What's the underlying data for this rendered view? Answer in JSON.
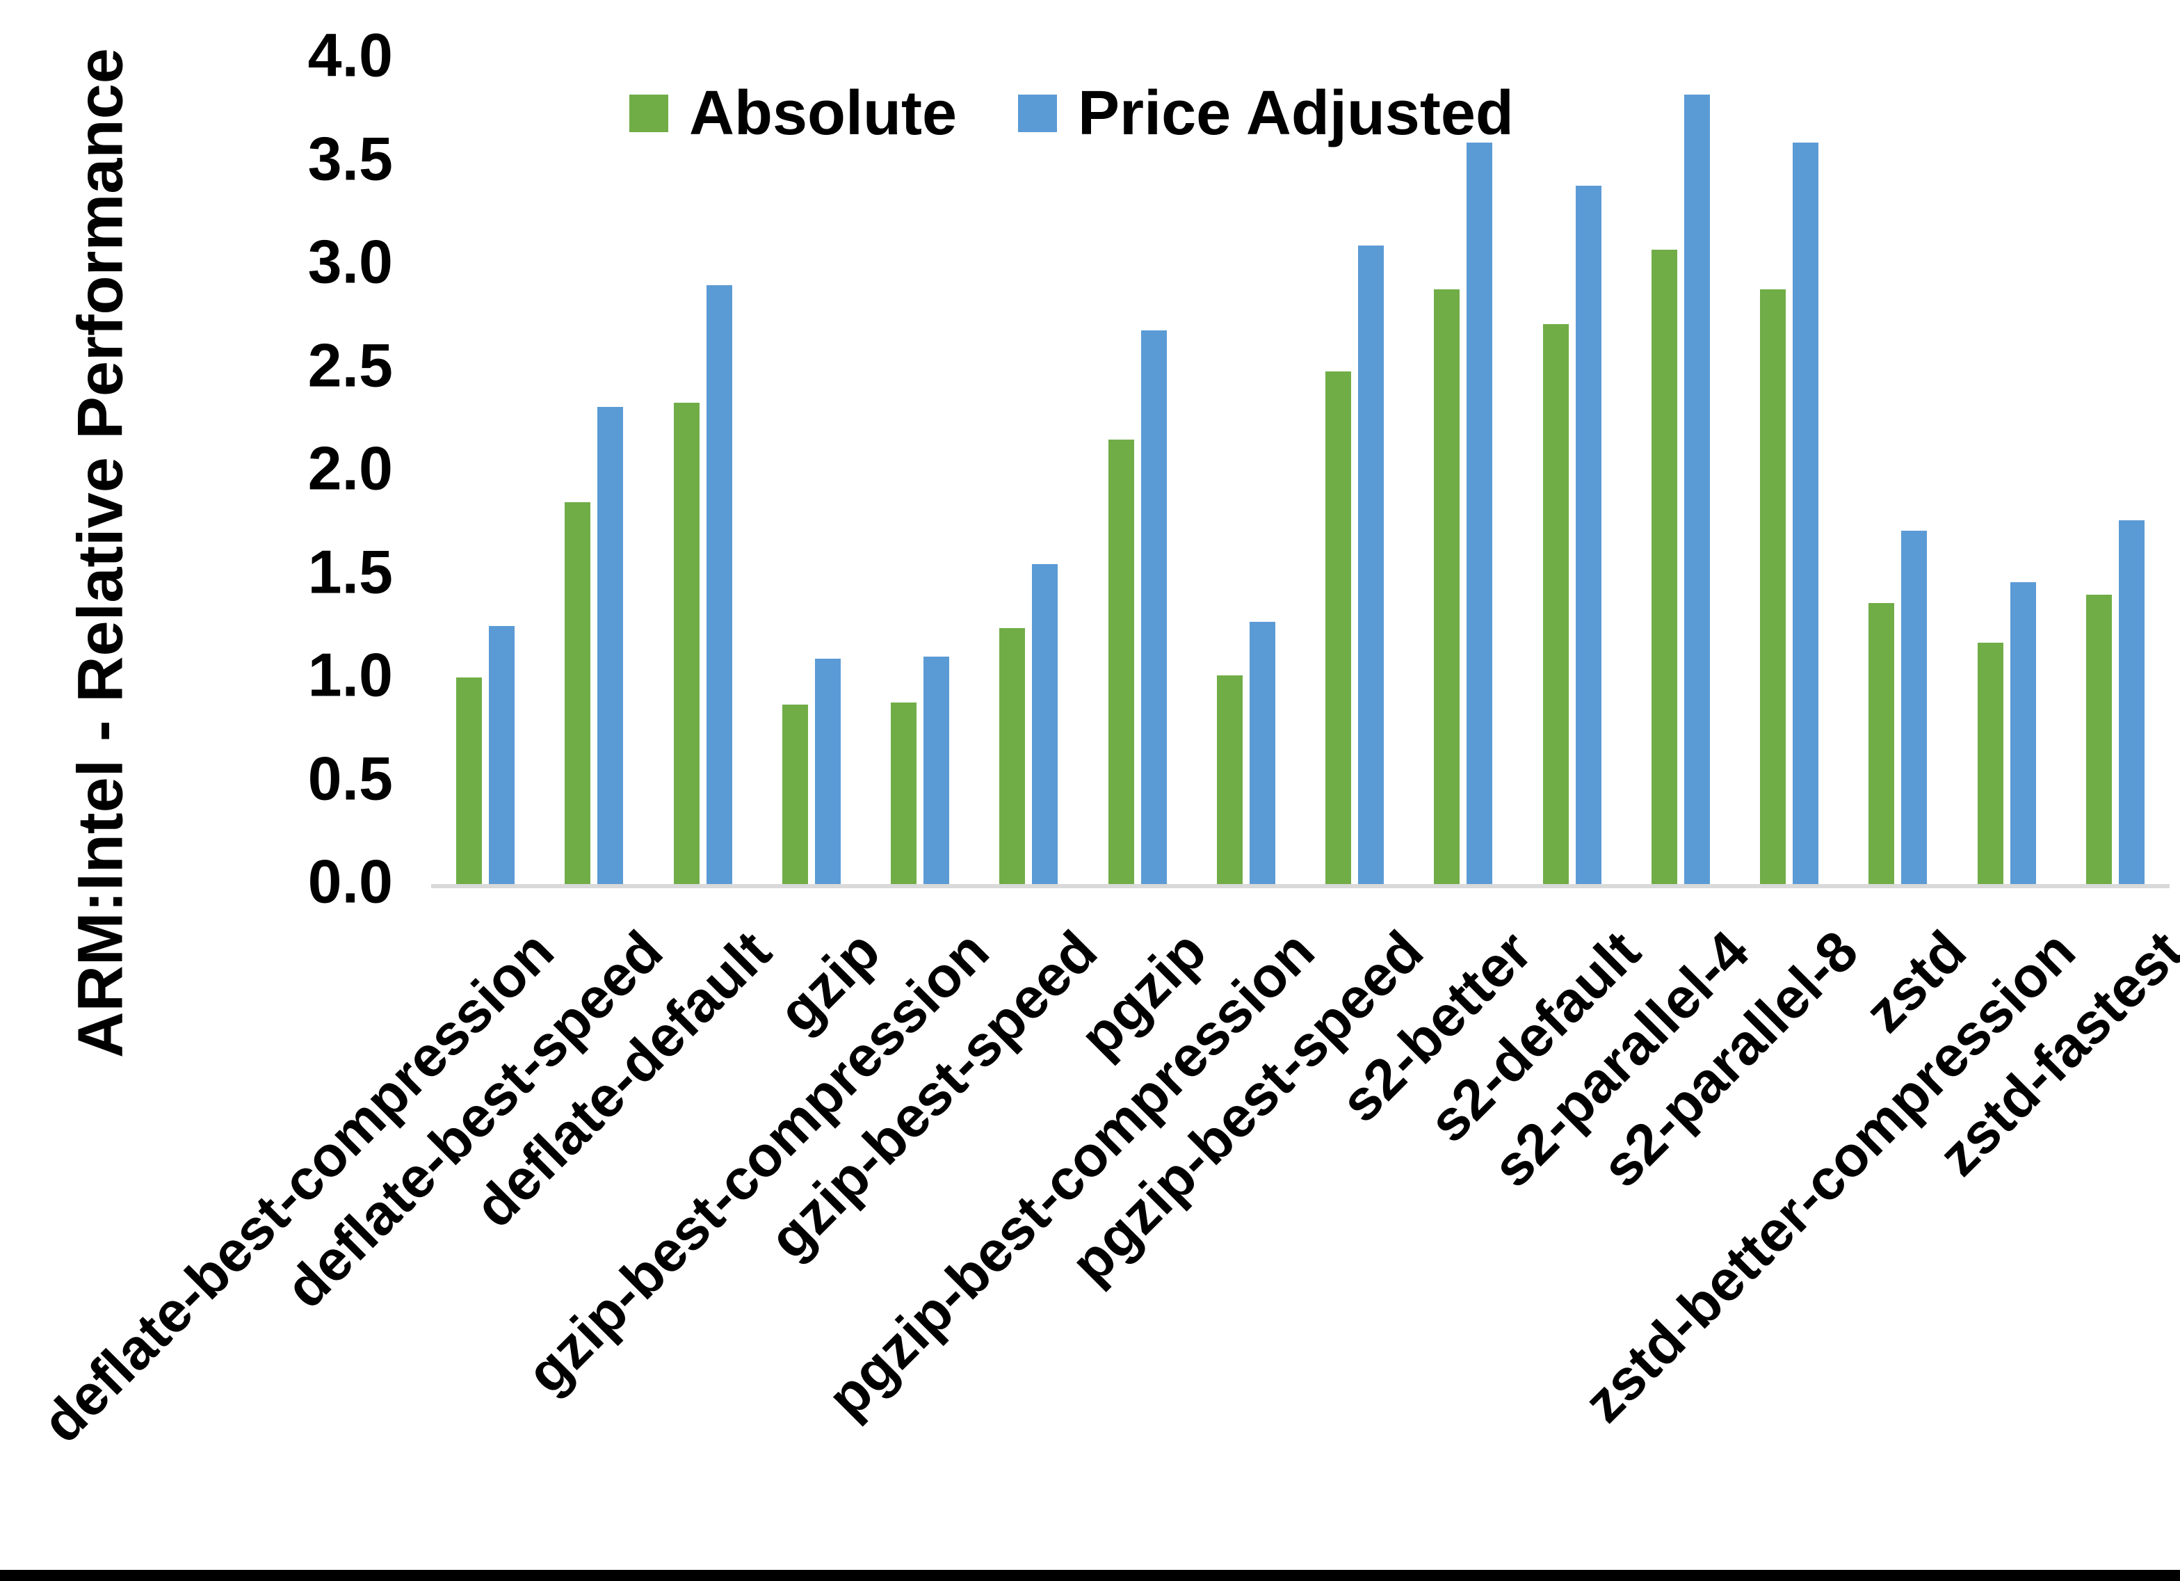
{
  "chart_data": {
    "type": "bar",
    "title": "",
    "xlabel": "",
    "ylabel": "ARM:Intel - Relative Performance",
    "ylim": [
      0.0,
      4.0
    ],
    "ytick_step": 0.5,
    "ytick_labels": [
      "4.0",
      "3.5",
      "3.0",
      "2.5",
      "2.0",
      "1.5",
      "1.0",
      "0.5",
      "0.0"
    ],
    "grid": false,
    "legend_position": "top-center",
    "categories": [
      "deflate-best-compression",
      "deflate-best-speed",
      "deflate-default",
      "gzip",
      "gzip-best-compression",
      "gzip-best-speed",
      "pgzip",
      "pgzip-best-compression",
      "pgzip-best-speed",
      "s2-better",
      "s2-default",
      "s2-parallel-4",
      "s2-parallel-8",
      "zstd",
      "zstd-better-compression",
      "zstd-fastest"
    ],
    "series": [
      {
        "name": "Absolute",
        "color": "#70AD47",
        "values": [
          1.0,
          1.85,
          2.33,
          0.87,
          0.88,
          1.24,
          2.15,
          1.01,
          2.48,
          2.88,
          2.71,
          3.07,
          2.88,
          1.36,
          1.17,
          1.4
        ]
      },
      {
        "name": "Price Adjusted",
        "color": "#5B9BD5",
        "values": [
          1.25,
          2.31,
          2.9,
          1.09,
          1.1,
          1.55,
          2.68,
          1.27,
          3.09,
          3.59,
          3.38,
          3.82,
          3.59,
          1.71,
          1.46,
          1.76
        ]
      }
    ]
  },
  "colors": {
    "background": "#FFFFFF",
    "axis_line": "#D9D9D9",
    "text": "#000000",
    "bottom_border": "#000000"
  }
}
